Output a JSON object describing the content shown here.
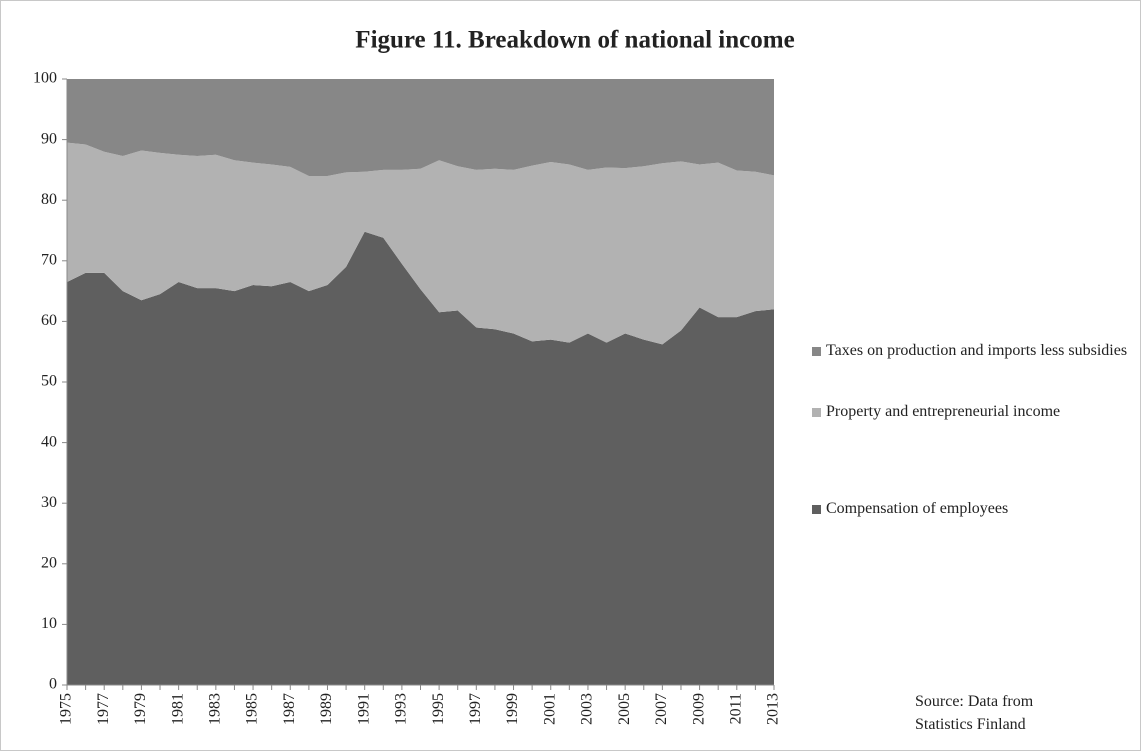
{
  "chart_data": {
    "type": "stacked-area",
    "title": "Figure 11. Breakdown of  national income",
    "categories": [
      "1975",
      null,
      "1977",
      null,
      "1979",
      null,
      "1981",
      null,
      "1983",
      null,
      "1985",
      null,
      "1987",
      null,
      "1989",
      null,
      "1991",
      null,
      "1993",
      null,
      "1995",
      null,
      "1997",
      null,
      "1999",
      null,
      "2001",
      null,
      "2003",
      null,
      "2005",
      null,
      "2007",
      null,
      "2009",
      null,
      "2011",
      null,
      "2013"
    ],
    "series": [
      {
        "name": "Compensation of employees",
        "color": "#5f5f5f",
        "values": [
          66.5,
          68,
          68,
          65,
          63.5,
          64.5,
          66.5,
          65.5,
          65.5,
          65,
          66,
          65.8,
          66.5,
          65,
          66,
          69,
          74.8,
          73.8,
          69.5,
          65.3,
          61.5,
          61.8,
          59,
          58.7,
          58,
          56.7,
          57,
          56.5,
          58,
          56.5,
          58,
          57,
          56.2,
          58.5,
          62.3,
          60.7,
          60.7,
          61.7,
          62
        ]
      },
      {
        "name": "Property and entrepreneurial income",
        "color": "#b2b2b2",
        "values": [
          23.0,
          21.2,
          20.0,
          22.3,
          24.7,
          23.3,
          21.0,
          21.8,
          22.0,
          21.6,
          20.2,
          20.1,
          19.0,
          19.0,
          18.0,
          15.6,
          9.9,
          11.2,
          15.5,
          19.9,
          25.1,
          23.8,
          26.0,
          26.5,
          27.0,
          29.0,
          29.3,
          29.4,
          27.0,
          28.9,
          27.3,
          28.6,
          29.9,
          27.9,
          23.6,
          25.5,
          24.2,
          23.0,
          22.1
        ]
      },
      {
        "name": "Taxes on production and imports less subsidies",
        "color": "#878787",
        "values": [
          10.5,
          10.8,
          12.0,
          12.7,
          11.8,
          12.2,
          12.5,
          12.7,
          12.5,
          13.4,
          13.8,
          14.1,
          14.5,
          16.0,
          16.0,
          15.4,
          15.3,
          15.0,
          15.0,
          14.8,
          13.4,
          14.4,
          15.0,
          14.8,
          15.0,
          14.3,
          13.7,
          14.1,
          15.0,
          14.6,
          14.7,
          14.4,
          13.9,
          13.6,
          14.1,
          13.8,
          15.1,
          15.3,
          15.9
        ]
      }
    ],
    "ylim": [
      0,
      100
    ],
    "yticks": [
      0,
      10,
      20,
      30,
      40,
      50,
      60,
      70,
      80,
      90,
      100
    ],
    "grid": false,
    "legend": "right",
    "source": "Source: Data from Statistics Finland"
  }
}
